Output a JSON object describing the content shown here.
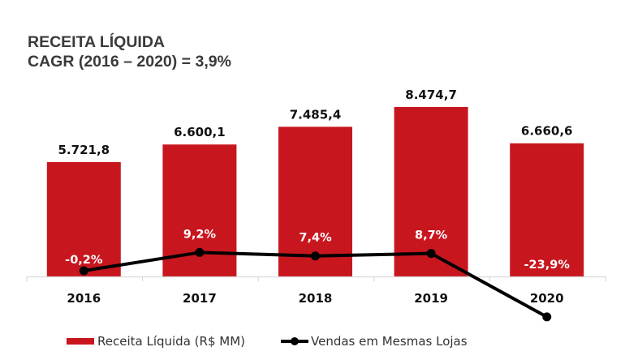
{
  "title": {
    "line1": "RECEITA LÍQUIDA",
    "line2": "CAGR (2016 – 2020) =  3,9%"
  },
  "colors": {
    "bar": "#c8161f",
    "line": "#000000",
    "axis": "#d9d9d9"
  },
  "chart_data": {
    "type": "bar",
    "title": "RECEITA LÍQUIDA — CAGR (2016 – 2020) = 3,9%",
    "xlabel": "",
    "ylabel": "",
    "categories": [
      "2016",
      "2017",
      "2018",
      "2019",
      "2020"
    ],
    "series": [
      {
        "name": "Receita Líquida (R$ MM)",
        "type": "bar",
        "values": [
          5721.8,
          6600.1,
          7485.4,
          8474.7,
          6660.6
        ],
        "labels": [
          "5.721,8",
          "6.600,1",
          "7.485,4",
          "8.474,7",
          "6.660,6"
        ]
      },
      {
        "name": "Vendas em Mesmas Lojas",
        "type": "line",
        "values": [
          -0.2,
          9.2,
          7.4,
          8.7,
          -23.9
        ],
        "labels": [
          "-0,2%",
          "9,2%",
          "7,4%",
          "8,7%",
          "-23,9%"
        ],
        "unit": "%"
      }
    ],
    "bar_ylim": [
      0,
      8474.7
    ],
    "grid": false,
    "legend": "bottom-center"
  },
  "legend": {
    "items": [
      {
        "label": "Receita Líquida (R$ MM)",
        "kind": "bar"
      },
      {
        "label": "Vendas em Mesmas Lojas",
        "kind": "line"
      }
    ]
  }
}
